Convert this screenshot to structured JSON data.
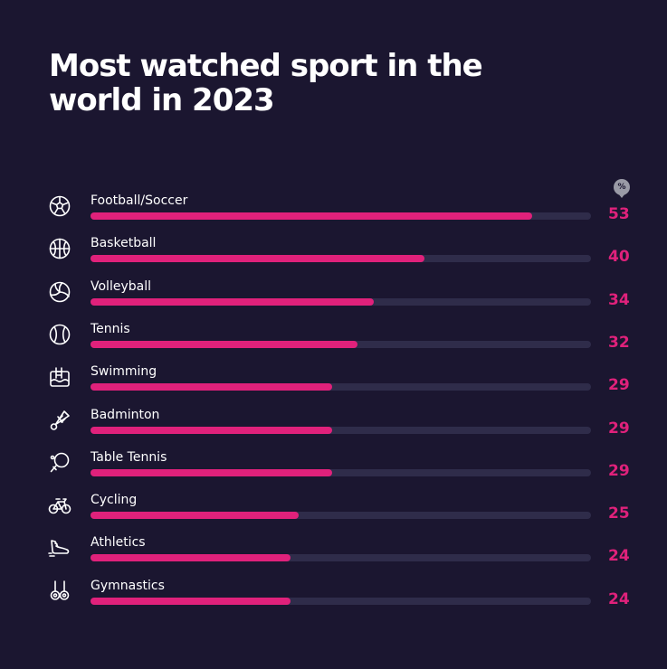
{
  "chart_data": {
    "type": "bar",
    "title": "Most watched sport in the world in 2023",
    "unit_badge": "%",
    "xlim": [
      0,
      60
    ],
    "bar_color": "#e0217b",
    "track_color": "#2f2c4a",
    "background": "#1b1630",
    "categories": [
      "Football/Soccer",
      "Basketball",
      "Volleyball",
      "Tennis",
      "Swimming",
      "Badminton",
      "Table Tennis",
      "Cycling",
      "Athletics",
      "Gymnastics"
    ],
    "values": [
      53,
      40,
      34,
      32,
      29,
      29,
      29,
      25,
      24,
      24
    ],
    "icons": [
      "soccer-ball-icon",
      "basketball-icon",
      "volleyball-icon",
      "tennis-ball-icon",
      "swimming-pool-icon",
      "shuttlecock-icon",
      "table-tennis-paddle-icon",
      "bicycle-icon",
      "running-shoe-icon",
      "gymnastic-rings-icon"
    ]
  }
}
